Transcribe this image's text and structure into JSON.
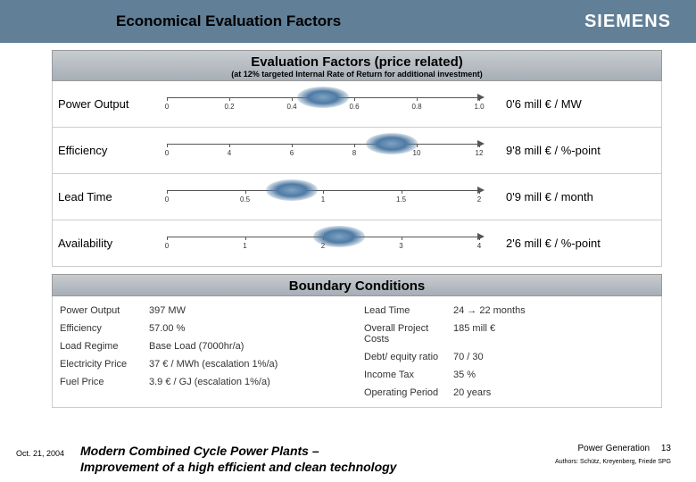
{
  "header": {
    "title": "Economical Evaluation Factors",
    "brand": "SIEMENS"
  },
  "evaluation": {
    "section_title": "Evaluation Factors (price related)",
    "section_subtitle": "(at 12% targeted Internal Rate of Return for additional investment)",
    "rows": [
      {
        "label": "Power Output",
        "value": "0'6  mill € / MW",
        "ticks": [
          "0",
          "0.2",
          "0.4",
          "0.6",
          "0.8",
          "1.0"
        ],
        "marker_pct": 50
      },
      {
        "label": "Efficiency",
        "value": "9'8  mill € / %-point",
        "ticks": [
          "0",
          "4",
          "6",
          "8",
          "10",
          "12"
        ],
        "marker_pct": 72
      },
      {
        "label": "Lead Time",
        "value": "0'9  mill € / month",
        "ticks": [
          "0",
          "0.5",
          "1",
          "1.5",
          "2"
        ],
        "marker_pct": 40
      },
      {
        "label": "Availability",
        "value": "2'6  mill € / %-point",
        "ticks": [
          "0",
          "1",
          "2",
          "3",
          "4"
        ],
        "marker_pct": 55
      }
    ]
  },
  "boundary": {
    "section_title": "Boundary Conditions",
    "left": [
      {
        "l": "Power Output",
        "v": "397 MW"
      },
      {
        "l": "Efficiency",
        "v": "57.00 %"
      },
      {
        "l": "Load Regime",
        "v": "Base Load (7000hr/a)"
      },
      {
        "l": "Electricity Price",
        "v": "37 € / MWh   (escalation 1%/a)"
      },
      {
        "l": "Fuel Price",
        "v": "3.9 € / GJ   (escalation 1%/a)"
      }
    ],
    "right": [
      {
        "l": "Lead Time",
        "v": "24 → 22 months"
      },
      {
        "l": "Overall Project Costs",
        "v": "185 mill €"
      },
      {
        "l": "Debt/ equity ratio",
        "v": "70 / 30"
      },
      {
        "l": "Income Tax",
        "v": "35 %"
      },
      {
        "l": "Operating Period",
        "v": "20 years"
      }
    ]
  },
  "footer": {
    "date": "Oct. 21, 2004",
    "title_l1": "Modern Combined Cycle Power Plants –",
    "title_l2": "Improvement of a high efficient and clean technology",
    "pg": "Power Generation",
    "page": "13",
    "authors": "Authors: Schütz, Kreyenberg, Friede SPG"
  },
  "colors": {
    "header_bg": "#617f97",
    "section_grad_top": "#c8ccd0",
    "section_grad_bot": "#a6aeb6",
    "marker": "#4f7aa3"
  }
}
